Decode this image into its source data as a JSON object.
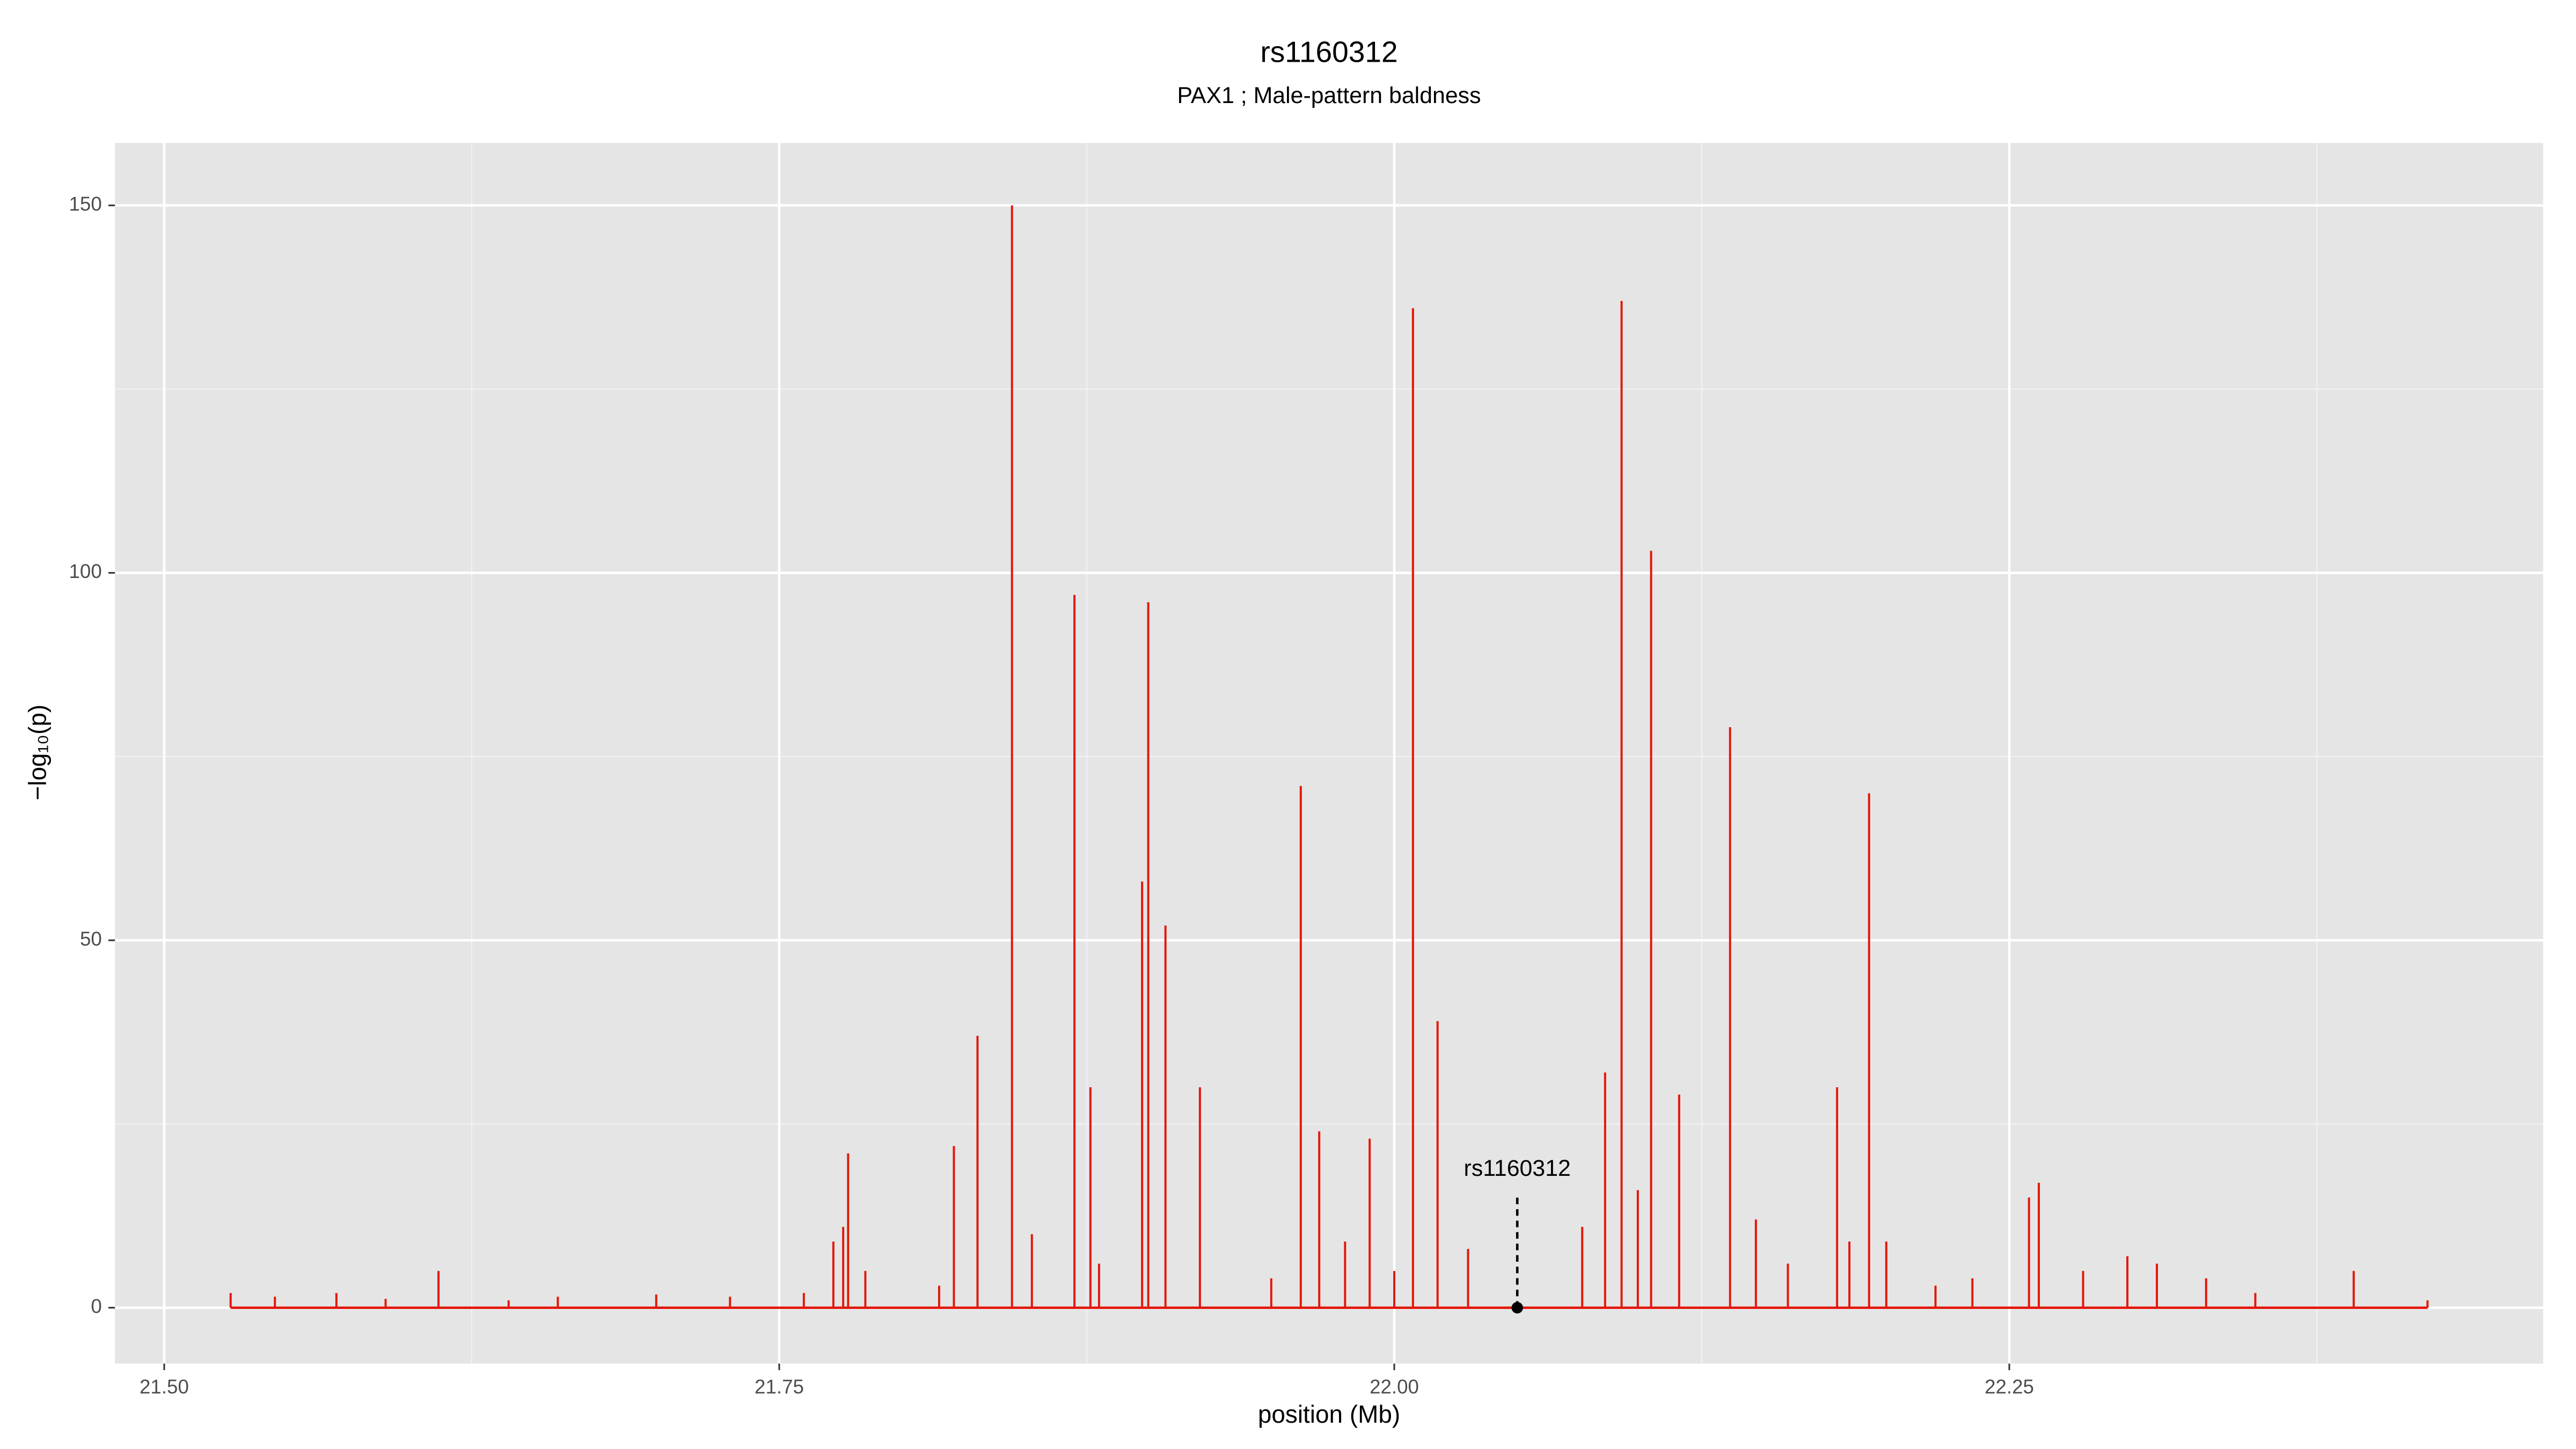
{
  "chart_data": {
    "type": "spike",
    "title": "rs1160312",
    "subtitle": "PAX1 ; Male-pattern baldness",
    "x_label": "position (Mb)",
    "y_label": "−log₁₀(p)",
    "color": "#e3170a",
    "x": [
      21.527,
      21.545,
      21.57,
      21.59,
      21.6115,
      21.64,
      21.66,
      21.7,
      21.73,
      21.76,
      21.772,
      21.776,
      21.778,
      21.785,
      21.815,
      21.821,
      21.8306,
      21.8446,
      21.8527,
      21.87,
      21.8765,
      21.88,
      21.8975,
      21.9,
      21.907,
      21.921,
      21.95,
      21.962,
      21.9695,
      21.98,
      21.99,
      22.0,
      22.0076,
      22.0176,
      22.03,
      22.0764,
      22.0857,
      22.0924,
      22.099,
      22.1044,
      22.1158,
      22.1365,
      22.147,
      22.16,
      22.18,
      22.185,
      22.193,
      22.2,
      22.22,
      22.235,
      22.258,
      22.262,
      22.28,
      22.298,
      22.31,
      22.33,
      22.35,
      22.39,
      22.42
    ],
    "values": [
      2,
      1.5,
      2,
      1.2,
      5,
      1,
      1.5,
      1.8,
      1.5,
      2,
      9,
      11,
      21,
      5,
      3,
      22,
      37,
      150,
      10,
      97,
      30,
      6,
      58,
      96,
      52,
      30,
      4,
      71,
      24,
      9,
      23,
      5,
      136,
      39,
      8,
      11,
      32,
      137,
      16,
      103,
      29,
      79,
      12,
      6,
      30,
      9,
      70,
      9,
      3,
      4,
      15,
      17,
      5,
      7,
      6,
      4,
      2,
      5,
      1
    ],
    "annotation": {
      "label": "rs1160312",
      "x": 22.05,
      "y": 0
    },
    "xlim": [
      21.48,
      22.467
    ],
    "ylim": [
      -7.6,
      158.5
    ],
    "xticks": [
      {
        "value": 21.5,
        "label": "21.50"
      },
      {
        "value": 21.75,
        "label": "21.75"
      },
      {
        "value": 22,
        "label": "22.00"
      },
      {
        "value": 22.25,
        "label": "22.25"
      }
    ],
    "yticks": [
      0,
      50,
      100,
      150
    ],
    "x_minor_grid": [
      21.625,
      21.875,
      22.125,
      22.375
    ],
    "y_minor_grid": [
      25,
      75,
      125
    ],
    "grid": true
  }
}
